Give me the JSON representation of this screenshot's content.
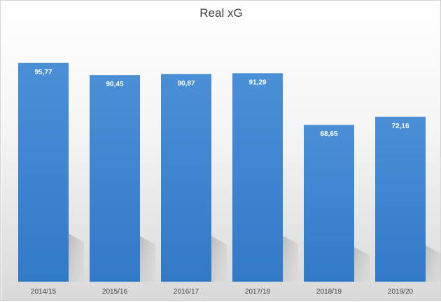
{
  "chart_data": {
    "type": "bar",
    "title": "Real xG",
    "categories": [
      "2014/15",
      "2015/16",
      "2016/17",
      "2017/18",
      "2018/19",
      "2019/20"
    ],
    "values": [
      95.77,
      90.45,
      90.87,
      91.29,
      68.65,
      72.16
    ],
    "value_labels": [
      "95,77",
      "90,45",
      "90,87",
      "91,29",
      "68,65",
      "72,16"
    ],
    "xlabel": "",
    "ylabel": "",
    "ylim": [
      0,
      100
    ],
    "grid": false,
    "legend": "none",
    "bar_color": "#4a8fd6",
    "bar_color_dark": "#3279c8"
  }
}
